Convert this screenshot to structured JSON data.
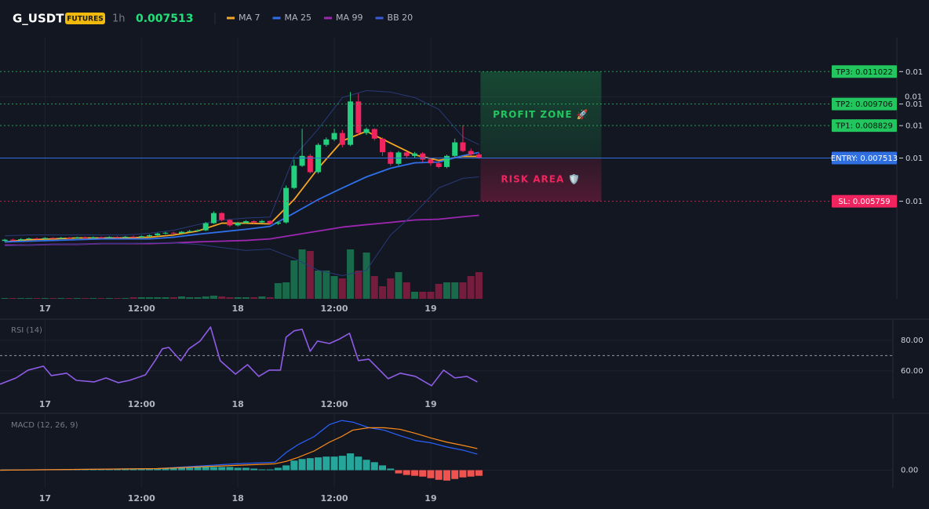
{
  "header": {
    "symbol": "G_USDT",
    "badge": "FUTURES",
    "interval": "1h",
    "price": "0.007513"
  },
  "chart_data": [
    {
      "type": "candlestick",
      "xlim": [
        -5.6,
        106
      ],
      "xticks": [
        {
          "value": 0,
          "label": "17"
        },
        {
          "value": 12,
          "label": "12:00"
        },
        {
          "value": 24,
          "label": "18"
        },
        {
          "value": 36,
          "label": "12:00"
        },
        {
          "value": 48,
          "label": "19"
        }
      ],
      "ylim": [
        0.0018,
        0.0124
      ],
      "yticks": [
        {
          "value": 0.01,
          "label": "0.01"
        }
      ],
      "up_color": "#22d07e",
      "down_color": "#f0245e",
      "x": [
        -5,
        -4,
        -3,
        -2,
        -1,
        0,
        1,
        2,
        3,
        4,
        5,
        6,
        7,
        8,
        9,
        10,
        11,
        12,
        13,
        14,
        15,
        16,
        17,
        18,
        19,
        20,
        21,
        22,
        23,
        24,
        25,
        26,
        27,
        28,
        29,
        30,
        31,
        32,
        33,
        34,
        35,
        36,
        37,
        38,
        39,
        40,
        41,
        42,
        43,
        44,
        45,
        46,
        47,
        48,
        49,
        50,
        51,
        52,
        53,
        54
      ],
      "open": [
        0.00415,
        0.0042,
        0.00418,
        0.00422,
        0.00425,
        0.00423,
        0.00427,
        0.00425,
        0.00428,
        0.00426,
        0.00429,
        0.00427,
        0.0043,
        0.00428,
        0.00431,
        0.00429,
        0.00432,
        0.0043,
        0.00434,
        0.00438,
        0.00445,
        0.00448,
        0.00446,
        0.00452,
        0.00455,
        0.00458,
        0.00487,
        0.00528,
        0.005,
        0.00478,
        0.00488,
        0.00495,
        0.0049,
        0.00496,
        0.00485,
        0.0049,
        0.0063,
        0.0072,
        0.0076,
        0.00694,
        0.00805,
        0.00827,
        0.00853,
        0.00805,
        0.00981,
        0.00853,
        0.00869,
        0.0083,
        0.00775,
        0.00728,
        0.00774,
        0.0076,
        0.0077,
        0.00745,
        0.0073,
        0.00715,
        0.0076,
        0.00815,
        0.0078,
        0.00766
      ],
      "high": [
        0.00423,
        0.00424,
        0.00426,
        0.00428,
        0.00429,
        0.0043,
        0.0043,
        0.00431,
        0.00431,
        0.00432,
        0.00432,
        0.00433,
        0.00433,
        0.00434,
        0.00434,
        0.00435,
        0.00436,
        0.00437,
        0.00441,
        0.00448,
        0.00452,
        0.00452,
        0.00455,
        0.0046,
        0.00462,
        0.00492,
        0.00535,
        0.00531,
        0.00503,
        0.00492,
        0.00499,
        0.00499,
        0.005,
        0.00499,
        0.00494,
        0.0064,
        0.00745,
        0.0087,
        0.00768,
        0.00812,
        0.00835,
        0.0087,
        0.00865,
        0.01019,
        0.01013,
        0.00875,
        0.00872,
        0.00835,
        0.0078,
        0.0078,
        0.00778,
        0.00776,
        0.00775,
        0.00752,
        0.00738,
        0.00765,
        0.0083,
        0.00885,
        0.0079,
        0.00772
      ],
      "low": [
        0.00412,
        0.00415,
        0.00416,
        0.0042,
        0.00421,
        0.00421,
        0.00423,
        0.00423,
        0.00424,
        0.00424,
        0.00425,
        0.00425,
        0.00426,
        0.00426,
        0.00427,
        0.00427,
        0.00428,
        0.00428,
        0.00432,
        0.00436,
        0.00442,
        0.00443,
        0.00444,
        0.00449,
        0.00452,
        0.00455,
        0.00484,
        0.00495,
        0.00472,
        0.00474,
        0.00484,
        0.00486,
        0.00487,
        0.00482,
        0.0048,
        0.00485,
        0.00625,
        0.00715,
        0.00688,
        0.00688,
        0.00798,
        0.0082,
        0.00795,
        0.008,
        0.00845,
        0.00845,
        0.00822,
        0.0076,
        0.0072,
        0.00722,
        0.0075,
        0.00752,
        0.00735,
        0.0072,
        0.0071,
        0.0071,
        0.00755,
        0.00775,
        0.0076,
        0.00748
      ],
      "close": [
        0.0042,
        0.00418,
        0.00422,
        0.00425,
        0.00423,
        0.00427,
        0.00425,
        0.00428,
        0.00426,
        0.00429,
        0.00427,
        0.0043,
        0.00428,
        0.00431,
        0.00429,
        0.00432,
        0.0043,
        0.00434,
        0.00438,
        0.00445,
        0.00448,
        0.00446,
        0.00452,
        0.00455,
        0.00458,
        0.00487,
        0.00528,
        0.005,
        0.00478,
        0.00488,
        0.00495,
        0.0049,
        0.00496,
        0.00485,
        0.0049,
        0.0063,
        0.0072,
        0.0076,
        0.00694,
        0.00805,
        0.00827,
        0.00853,
        0.00805,
        0.00981,
        0.00853,
        0.00869,
        0.0083,
        0.00775,
        0.00728,
        0.00774,
        0.0076,
        0.0077,
        0.00745,
        0.0073,
        0.00715,
        0.0076,
        0.00815,
        0.0078,
        0.00766,
        0.007513
      ],
      "volume": [
        1,
        1,
        1,
        1,
        1,
        1,
        1,
        1,
        1,
        1,
        1,
        1,
        1,
        1,
        1,
        1,
        2,
        2,
        2,
        2,
        2,
        2,
        3,
        2,
        2,
        3,
        4,
        3,
        2,
        2,
        2,
        2,
        3,
        2,
        20,
        21,
        49,
        63,
        61,
        36,
        36,
        29,
        26,
        63,
        36,
        59,
        29,
        16,
        26,
        34,
        21,
        9,
        9,
        9,
        19,
        21,
        21,
        21,
        29,
        34
      ],
      "series": [
        {
          "name": "MA 7",
          "color": "#f5a623",
          "x": [
            -5,
            -2,
            1,
            4,
            7,
            10,
            13,
            16,
            19,
            22,
            25,
            28,
            31,
            34,
            37,
            40,
            43,
            46,
            49,
            52,
            54
          ],
          "values": [
            0.00411,
            0.0042,
            0.00423,
            0.00427,
            0.00427,
            0.00427,
            0.0043,
            0.00439,
            0.00455,
            0.00487,
            0.00487,
            0.00484,
            0.00583,
            0.0071,
            0.00821,
            0.0086,
            0.00812,
            0.00764,
            0.00742,
            0.00758,
            0.00758
          ]
        },
        {
          "name": "MA 25",
          "color": "#2f6fe8",
          "x": [
            -5,
            -2,
            1,
            4,
            7,
            10,
            13,
            16,
            19,
            22,
            25,
            28,
            31,
            34,
            37,
            40,
            43,
            46,
            49,
            52,
            54
          ],
          "values": [
            0.00411,
            0.00414,
            0.00417,
            0.0042,
            0.00423,
            0.00423,
            0.00423,
            0.0043,
            0.00442,
            0.00452,
            0.00462,
            0.00474,
            0.00528,
            0.00583,
            0.0063,
            0.00675,
            0.0071,
            0.00732,
            0.00735,
            0.00761,
            0.00774
          ]
        },
        {
          "name": "MA 99",
          "color": "#9c27b0",
          "x": [
            -5,
            -2,
            1,
            4,
            7,
            10,
            13,
            16,
            19,
            22,
            25,
            28,
            31,
            34,
            37,
            40,
            43,
            46,
            49,
            52,
            54
          ],
          "values": [
            0.00398,
            0.00398,
            0.00401,
            0.00401,
            0.00404,
            0.00404,
            0.00404,
            0.00407,
            0.00411,
            0.00414,
            0.00417,
            0.00423,
            0.00439,
            0.00455,
            0.00471,
            0.00481,
            0.0049,
            0.005,
            0.00503,
            0.00513,
            0.00519
          ]
        },
        {
          "name": "BB 20",
          "color": "#283a78",
          "x": [
            -5,
            -2,
            1,
            4,
            7,
            10,
            13,
            16,
            19,
            22,
            25,
            28,
            31,
            34,
            37,
            40,
            43,
            46,
            49,
            52,
            54
          ],
          "upper": [
            0.00436,
            0.00439,
            0.00439,
            0.00439,
            0.00439,
            0.00439,
            0.00446,
            0.00458,
            0.00481,
            0.005,
            0.00508,
            0.00512,
            0.00758,
            0.00869,
            0.00997,
            0.01025,
            0.01019,
            0.00997,
            0.00949,
            0.00837,
            0.00806
          ],
          "lower": [
            0.00395,
            0.00398,
            0.00401,
            0.00401,
            0.00404,
            0.00404,
            0.00407,
            0.00407,
            0.00401,
            0.00388,
            0.00376,
            0.00382,
            0.00344,
            0.00296,
            0.00274,
            0.00296,
            0.00439,
            0.00528,
            0.0063,
            0.00669,
            0.00675
          ]
        }
      ],
      "levels": [
        {
          "label": "TP3: 0.011022",
          "value": 0.011022,
          "axis_label": "0.01",
          "color": "#22c55e",
          "text_color": "#08150d",
          "style": "dashed"
        },
        {
          "label": "TP2: 0.009706",
          "value": 0.009706,
          "axis_label": "0.01",
          "color": "#22c55e",
          "text_color": "#08150d",
          "style": "dashed"
        },
        {
          "label": "TP1: 0.008829",
          "value": 0.008829,
          "axis_label": "0.01",
          "color": "#22c55e",
          "text_color": "#08150d",
          "style": "dashed"
        },
        {
          "label": "ENTRY: 0.007513",
          "value": 0.007513,
          "axis_label": "0.01",
          "color": "#2f6fe0",
          "text_color": "#ffffff",
          "style": "solid"
        },
        {
          "label": "SL: 0.005759",
          "value": 0.005759,
          "axis_label": "0.01",
          "color": "#f0245e",
          "text_color": "#ffffff",
          "style": "dashed"
        }
      ],
      "zones": [
        {
          "label": "PROFIT ZONE 🚀",
          "from": 0.007513,
          "to": 0.011022,
          "color": "#22c55e"
        },
        {
          "label": "RISK AREA 🛡️",
          "from": 0.005759,
          "to": 0.007513,
          "color": "#f0245e"
        }
      ]
    },
    {
      "type": "line",
      "title": "RSI (14)",
      "xlim": [
        -5.6,
        106
      ],
      "xticks": [
        {
          "value": 0,
          "label": "17"
        },
        {
          "value": 12,
          "label": "12:00"
        },
        {
          "value": 24,
          "label": "18"
        },
        {
          "value": 36,
          "label": "12:00"
        },
        {
          "value": 48,
          "label": "19"
        }
      ],
      "ylim": [
        42,
        93.3
      ],
      "yticks": [
        {
          "value": 80,
          "label": "80.00"
        },
        {
          "value": 60,
          "label": "60.00"
        }
      ],
      "ref_line": 70,
      "color": "#8e5ce6",
      "x": [
        -5.6,
        -3.6,
        -2.1,
        -0.2,
        0.8,
        2.7,
        3.9,
        6.1,
        7.6,
        9.1,
        10.5,
        12.5,
        13.7,
        14.6,
        15.4,
        16.9,
        17.9,
        19.3,
        20.6,
        21.8,
        23.7,
        25.2,
        26.6,
        27.9,
        29.3,
        30,
        31,
        32,
        33,
        33.9,
        35.4,
        36.7,
        37.9,
        39,
        40.3,
        42.7,
        44.2,
        46.1,
        48.1,
        49.6,
        51,
        52.5,
        53.8
      ],
      "values": [
        51.3,
        55.4,
        60.5,
        63.1,
        56.9,
        58.5,
        53.8,
        52.8,
        55.4,
        52.3,
        53.8,
        57.4,
        66.7,
        74.4,
        75.4,
        66.7,
        74.4,
        79.5,
        88.7,
        66.7,
        57.9,
        64.1,
        56.4,
        60.5,
        60.5,
        82.1,
        86.2,
        87.2,
        72.8,
        79.5,
        77.9,
        81,
        84.6,
        66.7,
        67.7,
        54.9,
        58.5,
        56.4,
        50.3,
        60.5,
        55.4,
        56.4,
        52.8
      ]
    },
    {
      "type": "macd",
      "title": "MACD (12, 26, 9)",
      "xlim": [
        -5.6,
        106
      ],
      "xticks": [
        {
          "value": 0,
          "label": "17"
        },
        {
          "value": 12,
          "label": "12:00"
        },
        {
          "value": 24,
          "label": "18"
        },
        {
          "value": 36,
          "label": "12:00"
        },
        {
          "value": 48,
          "label": "19"
        }
      ],
      "ylim": [
        -0.00022,
        0.0007
      ],
      "yticks": [
        {
          "value": 0,
          "label": "0.00"
        }
      ],
      "up_color": "#26a69a",
      "down_color": "#ef5350",
      "x": [
        -5,
        -4,
        -3,
        -2,
        -1,
        0,
        1,
        2,
        3,
        4,
        5,
        6,
        7,
        8,
        9,
        10,
        11,
        12,
        13,
        14,
        15,
        16,
        17,
        18,
        19,
        20,
        21,
        22,
        23,
        24,
        25,
        26,
        27,
        28,
        29,
        30,
        31,
        32,
        33,
        34,
        35,
        36,
        37,
        38,
        39,
        40,
        41,
        42,
        43,
        44,
        45,
        46,
        47,
        48,
        49,
        50,
        51,
        52,
        53,
        54
      ],
      "histogram": [
        1e-05,
        1e-05,
        1e-05,
        1e-05,
        1e-05,
        1e-05,
        1e-05,
        1e-05,
        1e-05,
        1e-05,
        1e-05,
        1e-05,
        1e-05,
        1e-05,
        1e-05,
        1e-05,
        1e-05,
        2e-05,
        2e-05,
        2e-05,
        2e-05,
        3e-05,
        3e-05,
        3e-05,
        4e-05,
        5e-05,
        4e-05,
        4e-05,
        4e-05,
        3e-05,
        3e-05,
        2e-05,
        1e-05,
        1e-05,
        3e-05,
        6e-05,
        0.00012,
        0.00014,
        0.00015,
        0.00016,
        0.00017,
        0.00017,
        0.00018,
        0.00021,
        0.00017,
        0.00013,
        0.0001,
        6e-05,
        2e-05,
        -4e-05,
        -6e-05,
        -7e-05,
        -8e-05,
        -0.0001,
        -0.00012,
        -0.00013,
        -0.00011,
        -9e-05,
        -8e-05,
        -7e-05
      ],
      "series": [
        {
          "color": "#2962ff",
          "x": [
            -5.6,
            14,
            23.7,
            28.6,
            30,
            31.5,
            33.5,
            35.4,
            36.9,
            38.3,
            40.3,
            42.2,
            44.2,
            46.1,
            48.1,
            50,
            52,
            53.8
          ],
          "values": [
            0,
            2e-05,
            8e-05,
            0.0001,
            0.00022,
            0.00032,
            0.00042,
            0.00057,
            0.00062,
            0.0006,
            0.00053,
            0.0005,
            0.00043,
            0.00037,
            0.00034,
            0.00029,
            0.00025,
            0.0002
          ]
        },
        {
          "color": "#ff8c1a",
          "x": [
            -5.6,
            14,
            23.7,
            28.6,
            30,
            31.5,
            33.5,
            35.4,
            36.9,
            38.3,
            40.3,
            42.2,
            44.2,
            46.1,
            48.1,
            50,
            52,
            53.8
          ],
          "values": [
            0,
            2e-05,
            6e-05,
            8e-05,
            0.00011,
            0.00016,
            0.00024,
            0.00035,
            0.00042,
            0.0005,
            0.00053,
            0.00053,
            0.00051,
            0.00046,
            0.0004,
            0.00035,
            0.00031,
            0.00027
          ]
        }
      ]
    }
  ]
}
